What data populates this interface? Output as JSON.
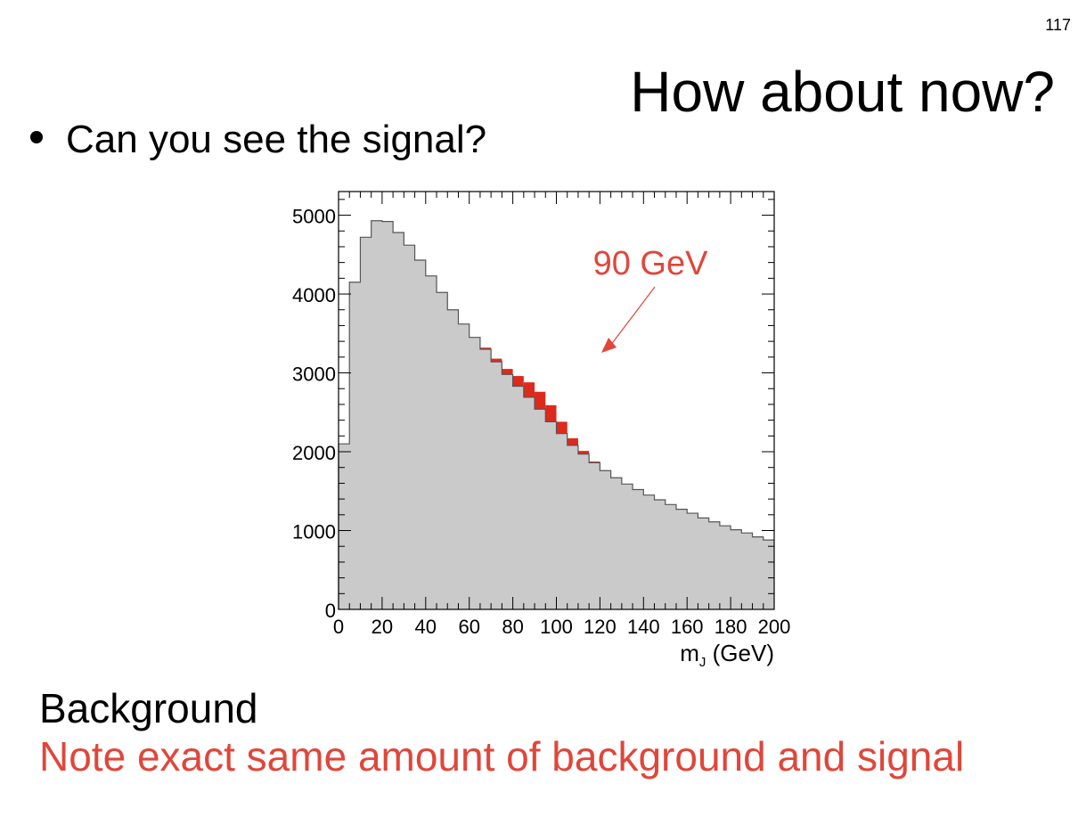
{
  "slide": {
    "page_number": "117",
    "title": "How about now?",
    "bullet": "Can you see the signal?",
    "footer_line1": "Background",
    "footer_line2": "Note exact same amount of background and signal"
  },
  "colors": {
    "background_fill": "#cacaca",
    "background_line": "#555555",
    "signal": "#dd2a1c",
    "annotation": "#e0463a"
  },
  "chart_data": {
    "type": "histogram",
    "xlabel": "m_J (GeV)",
    "xlim": [
      0,
      200
    ],
    "ylim": [
      0,
      5300
    ],
    "x_ticks": [
      0,
      20,
      40,
      60,
      80,
      100,
      120,
      140,
      160,
      180,
      200
    ],
    "y_ticks": [
      0,
      1000,
      2000,
      3000,
      4000,
      5000
    ],
    "annotation": {
      "text": "90 GeV",
      "points_to_x": 90
    },
    "series": [
      {
        "name": "Background",
        "bin_width": 5,
        "bin_start": 0,
        "values": [
          2100,
          4150,
          4720,
          4930,
          4920,
          4780,
          4620,
          4430,
          4230,
          4020,
          3800,
          3620,
          3450,
          3300,
          3140,
          2980,
          2830,
          2690,
          2540,
          2380,
          2230,
          2080,
          1970,
          1860,
          1760,
          1670,
          1590,
          1520,
          1450,
          1390,
          1330,
          1270,
          1220,
          1160,
          1110,
          1060,
          1010,
          970,
          920,
          880
        ]
      },
      {
        "name": "Signal",
        "bin_width": 5,
        "bin_start": 0,
        "values": [
          0,
          0,
          0,
          0,
          0,
          0,
          0,
          0,
          0,
          0,
          0,
          0,
          0,
          20,
          40,
          70,
          130,
          190,
          220,
          210,
          150,
          90,
          40,
          15,
          0,
          0,
          0,
          0,
          0,
          0,
          0,
          0,
          0,
          0,
          0,
          0,
          0,
          0,
          0,
          0
        ]
      }
    ]
  }
}
